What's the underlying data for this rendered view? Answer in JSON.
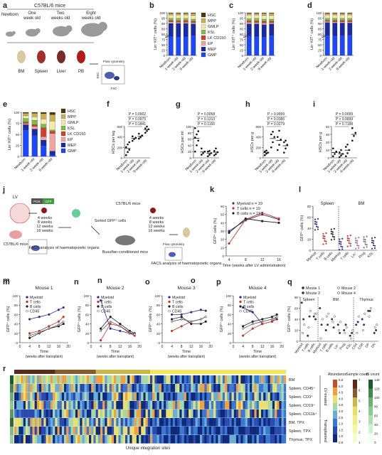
{
  "panel_letters": [
    "a",
    "b",
    "c",
    "d",
    "e",
    "f",
    "g",
    "h",
    "i",
    "j",
    "k",
    "l",
    "m",
    "n",
    "o",
    "p",
    "q",
    "r"
  ],
  "colors": {
    "HSC": "#4a3b0e",
    "MPP": "#c8ae54",
    "GMLP": "#f4eaa8",
    "KSL": "#7fbf3f",
    "LK CD150": "#d43f2c",
    "EP": "#f0a3a3",
    "MEP": "#1a2aa7",
    "GMP": "#1c46ff",
    "myeloid": "#3b2b8c",
    "tcell": "#c0392b",
    "bcell": "#222222"
  },
  "panel_a": {
    "title": "C57BL/6 mice",
    "ages": [
      "Newborn",
      "One week old",
      "Two weeks old",
      "Eight weeks old"
    ],
    "organs": [
      "BM",
      "Spleen",
      "Liver",
      "PB"
    ],
    "flow_label": "Flow cytometry",
    "fsc": "FSC",
    "ssc": "SSC"
  },
  "stack_legend": [
    "HSC",
    "MPP",
    "GMLP",
    "KSL",
    "LK CD150",
    "EP",
    "MEP",
    "GMP"
  ],
  "x_ages": [
    "Newborn",
    "1-week-old",
    "2-week-old",
    "8-week-old"
  ],
  "yl_b": "Lin⁻KIT⁺ cells (%)",
  "yticks_100": [
    "0",
    "25",
    "50",
    "75",
    "80",
    "85",
    "90",
    "95",
    "100"
  ],
  "yticks_e": [
    "0",
    "25",
    "50",
    "75",
    "100"
  ],
  "panel_f": {
    "ylabel": "HSCs per leg",
    "ticks": [
      "0",
      "200",
      "400",
      "600"
    ],
    "p": [
      "P = 0.0002",
      "P = 0.0975",
      "P = 0.1841"
    ]
  },
  "panel_g": {
    "ylabel": "HSCs per ml",
    "ticks": [
      "0",
      "20",
      "40",
      "60",
      "80",
      "100"
    ],
    "p": [
      "P = 0.0058",
      "P = 0.1310",
      "P = 0.1160"
    ]
  },
  "panel_h": {
    "ylabel": "HSCs per g",
    "ticks": [
      "0",
      "200",
      "400",
      "600"
    ],
    "p": [
      "P > 0.9999",
      "P = 0.0386",
      "P = 0.0279"
    ]
  },
  "panel_i": {
    "ylabel": "HSCs per g",
    "ticks": [
      "0",
      "10",
      "20",
      "30",
      "40"
    ],
    "p": [
      "P = 0.0099",
      "P > 0.9999",
      "P = 0.7188"
    ]
  },
  "panel_j": {
    "lv": "LV",
    "pgk": "PGK",
    "gfp": "GFP",
    "weeks1": [
      "4 weeks",
      "8 weeks",
      "12 weeks",
      "16 weeks"
    ],
    "weeks2": [
      "4 weeks",
      "8 weeks",
      "12 weeks",
      "16 weeks"
    ],
    "mouse": "C57BL/6 mice",
    "mouse2": "C57BL/6 mice",
    "sorted": "Sorted GFP⁺ cells",
    "facs1": "FACS analysis of haematopoietic organs",
    "facs2": "FACS analysis of haematopoietic organs",
    "busulfan": "Busulfan-conditioned mice",
    "flow": "Flow cytometry"
  },
  "panel_k": {
    "legend": [
      "Myeloid n = 19",
      "T cells n = 19",
      "B cells n = 19"
    ],
    "ylabel": "GFP⁺ cells (%)",
    "xlabel": "Time (weeks after LV administration)",
    "xticks": [
      "4",
      "8",
      "12",
      "16"
    ],
    "yticks": [
      "0",
      "10",
      "20",
      "30",
      "40",
      "50",
      "60"
    ]
  },
  "panel_l": {
    "groups": [
      "Spleen",
      "BM"
    ],
    "ylabel": "GFP⁺ cells (%)",
    "xcats": [
      "Myeloid",
      "T cells",
      "B cells",
      "Myeloid",
      "T cells",
      "Lin⁻",
      "Prog",
      "KSL"
    ],
    "yticks": [
      "0",
      "20",
      "40",
      "60",
      "80"
    ]
  },
  "mice_titles": [
    "Mouse 1",
    "Mouse 2",
    "Mouse 3",
    "Mouse 4"
  ],
  "mice_legend": [
    "Myeloid",
    "T cells",
    "B cells",
    "CD45"
  ],
  "mice_ylabel": "GFP⁺ cells (%)",
  "mice_xlabel": "Time (weeks after transplant)",
  "mice_xticks": [
    "0",
    "4",
    "8",
    "12",
    "16",
    "20"
  ],
  "mice_yticks": [
    "0",
    "20",
    "40",
    "60",
    "80",
    "100"
  ],
  "panel_q": {
    "legend": [
      "Mouse 1",
      "Mouse 2",
      "Mouse 3",
      "Mouse 4"
    ],
    "groups": [
      "Spleen",
      "BM",
      "Thymus"
    ],
    "ylabel": "GFP⁺ cells (%)",
    "xcats": [
      "Myeloid",
      "T cells",
      "B cells",
      "Myeloid",
      "T cells",
      "B cells",
      "Lin⁻",
      "Prog",
      "KSL",
      "CD4",
      "CD8",
      "DP",
      "DN"
    ],
    "yticks": [
      "0",
      "20",
      "40",
      "60",
      "80"
    ]
  },
  "panel_r": {
    "rows": [
      "BM",
      "Spleen, CD45⁺",
      "Spleen, CD3⁺",
      "Spleen, CD19⁺",
      "Spleen, CD11b⁺",
      "BM, TPX",
      "Spleen, TPX",
      "Thymus, TPX"
    ],
    "xlabel": "Unique integration sites",
    "bracket1": "LV-treated",
    "bracket2": "Transplanted",
    "cb1": {
      "title": "Abundance",
      "ticks": [
        "5.5",
        "5.0",
        "4.5",
        "4.0",
        "3.5",
        "3.0",
        "2.5",
        "2.0",
        "1.5",
        "1.0",
        "0.5"
      ]
    },
    "cb2": {
      "title": "Sample count",
      "ticks": [
        "7",
        "6",
        "5",
        "4",
        "3",
        "2",
        "1"
      ]
    },
    "cb3": {
      "title": "IS count",
      "ticks": [
        "140",
        "120",
        "100",
        "80",
        "60",
        "40",
        "20",
        "0"
      ]
    }
  },
  "chart_data": [
    {
      "type": "bar",
      "panel": "b",
      "stacked": true,
      "categories": [
        "Newborn",
        "1-week-old",
        "2-week-old",
        "8-week-old"
      ],
      "series": [
        {
          "name": "GMP",
          "values": [
            45,
            44,
            45,
            47
          ]
        },
        {
          "name": "MEP",
          "values": [
            30,
            31,
            30,
            27
          ]
        },
        {
          "name": "EP",
          "values": [
            4,
            3,
            3,
            3
          ]
        },
        {
          "name": "LK CD150",
          "values": [
            3,
            3,
            4,
            3
          ]
        },
        {
          "name": "KSL",
          "values": [
            5,
            6,
            5,
            5
          ]
        },
        {
          "name": "GMLP",
          "values": [
            8,
            8,
            8,
            9
          ]
        },
        {
          "name": "MPP",
          "values": [
            4,
            4,
            4,
            5
          ]
        },
        {
          "name": "HSC",
          "values": [
            1,
            1,
            1,
            1
          ]
        }
      ]
    },
    {
      "type": "bar",
      "panel": "c",
      "stacked": true,
      "categories": [
        "Newborn",
        "1-week-old",
        "2-week-old",
        "8-week-old"
      ],
      "series": [
        {
          "name": "GMP",
          "values": [
            46,
            45,
            44,
            47
          ]
        },
        {
          "name": "MEP",
          "values": [
            28,
            29,
            28,
            27
          ]
        },
        {
          "name": "EP",
          "values": [
            4,
            3,
            4,
            3
          ]
        },
        {
          "name": "LK CD150",
          "values": [
            3,
            4,
            4,
            3
          ]
        },
        {
          "name": "KSL",
          "values": [
            5,
            6,
            5,
            5
          ]
        },
        {
          "name": "GMLP",
          "values": [
            9,
            8,
            9,
            9
          ]
        },
        {
          "name": "MPP",
          "values": [
            4,
            4,
            5,
            5
          ]
        },
        {
          "name": "HSC",
          "values": [
            1,
            1,
            1,
            1
          ]
        }
      ]
    },
    {
      "type": "bar",
      "panel": "d",
      "stacked": true,
      "categories": [
        "Newborn",
        "1-week-old",
        "2-week-old",
        "8-week-old"
      ],
      "series": [
        {
          "name": "GMP",
          "values": [
            47,
            46,
            47,
            48
          ]
        },
        {
          "name": "MEP",
          "values": [
            30,
            30,
            29,
            28
          ]
        },
        {
          "name": "EP",
          "values": [
            3,
            3,
            3,
            3
          ]
        },
        {
          "name": "LK CD150",
          "values": [
            2,
            3,
            3,
            3
          ]
        },
        {
          "name": "KSL",
          "values": [
            5,
            5,
            5,
            5
          ]
        },
        {
          "name": "GMLP",
          "values": [
            8,
            8,
            8,
            8
          ]
        },
        {
          "name": "MPP",
          "values": [
            4,
            4,
            4,
            4
          ]
        },
        {
          "name": "HSC",
          "values": [
            1,
            1,
            1,
            1
          ]
        }
      ]
    },
    {
      "type": "bar",
      "panel": "e",
      "stacked": true,
      "categories": [
        "Newborn",
        "1-week-old",
        "2-week-old",
        "8-week-old"
      ],
      "series": [
        {
          "name": "GMP",
          "values": [
            60,
            48,
            25,
            4
          ]
        },
        {
          "name": "MEP",
          "values": [
            12,
            14,
            12,
            8
          ]
        },
        {
          "name": "EP",
          "values": [
            3,
            6,
            8,
            40
          ]
        },
        {
          "name": "LK CD150",
          "values": [
            3,
            4,
            20,
            5
          ]
        },
        {
          "name": "KSL",
          "values": [
            8,
            10,
            8,
            3
          ]
        },
        {
          "name": "GMLP",
          "values": [
            6,
            8,
            12,
            20
          ]
        },
        {
          "name": "MPP",
          "values": [
            6,
            8,
            12,
            15
          ]
        },
        {
          "name": "HSC",
          "values": [
            2,
            2,
            3,
            5
          ]
        }
      ]
    },
    {
      "type": "scatter",
      "panel": "f",
      "categories": [
        "Newborn",
        "1-week-old",
        "2-week-old",
        "8-week-old"
      ],
      "groups": [
        [
          60,
          130,
          180,
          240,
          300,
          350
        ],
        [
          380,
          420,
          450,
          480
        ],
        [
          430,
          460,
          500,
          540
        ],
        [
          560,
          600,
          640,
          660,
          700
        ]
      ],
      "ylim": [
        0,
        700
      ]
    },
    {
      "type": "scatter",
      "panel": "g",
      "categories": [
        "Newborn",
        "1-week-old",
        "2-week-old",
        "8-week-old"
      ],
      "groups": [
        [
          20,
          40,
          55,
          65,
          75,
          85,
          95
        ],
        [
          10,
          15,
          20,
          30
        ],
        [
          5,
          10,
          15,
          20,
          22
        ],
        [
          8,
          12,
          18,
          22,
          30
        ]
      ],
      "ylim": [
        0,
        100
      ]
    },
    {
      "type": "scatter",
      "panel": "h",
      "categories": [
        "Newborn",
        "1-week-old",
        "2-week-old",
        "8-week-old"
      ],
      "groups": [
        [
          50,
          80,
          100,
          120,
          140
        ],
        [
          200,
          300,
          400,
          450,
          500
        ],
        [
          150,
          250,
          350,
          400,
          520
        ],
        [
          100,
          180,
          250,
          300,
          330
        ]
      ],
      "ylim": [
        0,
        600
      ]
    },
    {
      "type": "scatter",
      "panel": "i",
      "categories": [
        "Newborn",
        "1-week-old",
        "2-week-old",
        "8-week-old"
      ],
      "groups": [
        [
          2,
          5,
          8,
          12
        ],
        [
          1,
          3,
          5,
          7,
          10
        ],
        [
          2,
          6,
          10,
          14,
          17
        ],
        [
          22,
          28,
          32,
          38
        ]
      ],
      "ylim": [
        0,
        40
      ]
    },
    {
      "type": "line",
      "panel": "k",
      "x": [
        4,
        8,
        12,
        16
      ],
      "series": [
        {
          "name": "Myeloid",
          "values": [
            30,
            43,
            50,
            44
          ]
        },
        {
          "name": "T cells",
          "values": [
            15,
            44,
            52,
            45
          ]
        },
        {
          "name": "B cells",
          "values": [
            28,
            45,
            42,
            40
          ]
        }
      ],
      "ylim": [
        0,
        60
      ]
    },
    {
      "type": "line",
      "panel": "m",
      "x": [
        4,
        8,
        12,
        16,
        18
      ],
      "series": [
        {
          "name": "Myeloid",
          "values": [
            50,
            55,
            60,
            70,
            75
          ]
        },
        {
          "name": "T cells",
          "values": [
            20,
            25,
            35,
            45,
            55
          ]
        },
        {
          "name": "B cells",
          "values": [
            10,
            20,
            30,
            35,
            40
          ]
        },
        {
          "name": "CD45",
          "values": [
            15,
            22,
            30,
            38,
            45
          ]
        }
      ],
      "ylim": [
        0,
        100
      ]
    },
    {
      "type": "line",
      "panel": "n",
      "x": [
        4,
        8,
        12,
        16,
        18
      ],
      "series": [
        {
          "name": "Myeloid",
          "values": [
            90,
            30,
            25,
            20,
            18
          ]
        },
        {
          "name": "T cells",
          "values": [
            5,
            40,
            35,
            20,
            15
          ]
        },
        {
          "name": "B cells",
          "values": [
            30,
            55,
            40,
            25,
            20
          ]
        },
        {
          "name": "CD45",
          "values": [
            25,
            45,
            35,
            22,
            18
          ]
        }
      ],
      "ylim": [
        0,
        100
      ]
    },
    {
      "type": "line",
      "panel": "o",
      "x": [
        4,
        8,
        12,
        16,
        18
      ],
      "series": [
        {
          "name": "Myeloid",
          "values": [
            60,
            60,
            65,
            70,
            68
          ]
        },
        {
          "name": "T cells",
          "values": [
            25,
            35,
            45,
            50,
            55
          ]
        },
        {
          "name": "B cells",
          "values": [
            50,
            55,
            40,
            40,
            45
          ]
        },
        {
          "name": "CD45",
          "values": [
            45,
            50,
            45,
            50,
            55
          ]
        }
      ],
      "ylim": [
        0,
        100
      ]
    },
    {
      "type": "line",
      "panel": "p",
      "x": [
        4,
        8,
        12,
        16,
        18
      ],
      "series": [
        {
          "name": "Myeloid",
          "values": [
            75,
            65,
            40,
            45,
            50
          ]
        },
        {
          "name": "T cells",
          "values": [
            15,
            30,
            40,
            45,
            55
          ]
        },
        {
          "name": "B cells",
          "values": [
            35,
            45,
            50,
            55,
            60
          ]
        },
        {
          "name": "CD45",
          "values": [
            30,
            40,
            45,
            50,
            55
          ]
        }
      ],
      "ylim": [
        0,
        100
      ]
    },
    {
      "type": "heatmap",
      "panel": "r",
      "rows": [
        "BM",
        "Spleen, CD45⁺",
        "Spleen, CD3⁺",
        "Spleen, CD19⁺",
        "Spleen, CD11b⁺",
        "BM, TPX",
        "Spleen, TPX",
        "Thymus, TPX"
      ],
      "xlabel": "Unique integration sites",
      "value_range": [
        0.5,
        5.5
      ]
    }
  ]
}
